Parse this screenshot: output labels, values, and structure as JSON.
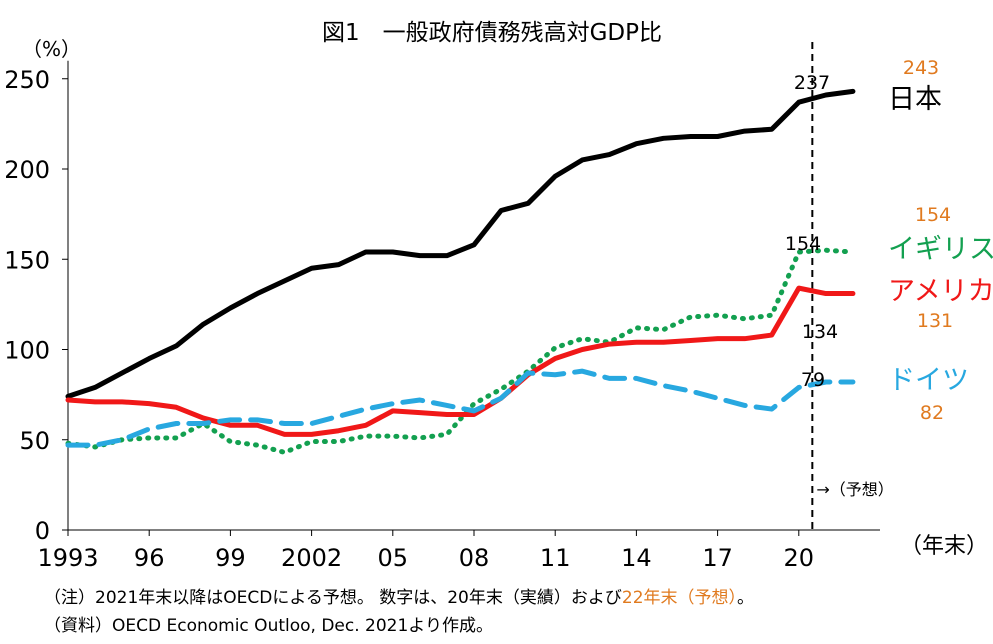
{
  "chart_data": {
    "type": "line",
    "title": "図1　一般政府債務残高対GDP比",
    "ylabel": "（%）",
    "xlabel": "（年末）",
    "ylim": [
      0,
      260
    ],
    "xlim": [
      1993,
      2023
    ],
    "x_ticks": [
      {
        "value": 1993,
        "label": "1993"
      },
      {
        "value": 1996,
        "label": "96"
      },
      {
        "value": 1999,
        "label": "99"
      },
      {
        "value": 2002,
        "label": "2002"
      },
      {
        "value": 2005,
        "label": "05"
      },
      {
        "value": 2008,
        "label": "08"
      },
      {
        "value": 2011,
        "label": "11"
      },
      {
        "value": 2014,
        "label": "14"
      },
      {
        "value": 2017,
        "label": "17"
      },
      {
        "value": 2020,
        "label": "20"
      }
    ],
    "y_ticks": [
      0,
      50,
      100,
      150,
      200,
      250
    ],
    "forecast_line": {
      "x": 2020.5,
      "label": "→（予想）"
    },
    "x": [
      1993,
      1994,
      1995,
      1996,
      1997,
      1998,
      1999,
      2000,
      2001,
      2002,
      2003,
      2004,
      2005,
      2006,
      2007,
      2008,
      2009,
      2010,
      2011,
      2012,
      2013,
      2014,
      2015,
      2016,
      2017,
      2018,
      2019,
      2020,
      2021,
      2022
    ],
    "series": [
      {
        "name": "日本",
        "color": "#000000",
        "style": "solid",
        "values": [
          74,
          79,
          87,
          95,
          102,
          114,
          123,
          131,
          138,
          145,
          147,
          154,
          154,
          152,
          152,
          158,
          177,
          181,
          196,
          205,
          208,
          214,
          217,
          218,
          218,
          221,
          222,
          237,
          241,
          243
        ],
        "label_20": "237",
        "label_22": "243"
      },
      {
        "name": "イギリス",
        "color": "#13a050",
        "style": "dotted",
        "values": [
          48,
          46,
          50,
          51,
          51,
          59,
          49,
          47,
          43,
          49,
          49,
          52,
          52,
          51,
          53,
          70,
          78,
          88,
          101,
          106,
          104,
          112,
          111,
          118,
          119,
          117,
          119,
          154,
          155,
          154
        ],
        "label_20": "154",
        "label_22": "154"
      },
      {
        "name": "アメリカ",
        "color": "#f01818",
        "style": "solid",
        "values": [
          72,
          71,
          71,
          70,
          68,
          62,
          58,
          58,
          53,
          53,
          55,
          58,
          66,
          65,
          64,
          64,
          73,
          86,
          95,
          100,
          103,
          104,
          104,
          105,
          106,
          106,
          108,
          134,
          131,
          131
        ],
        "label_20": "134",
        "label_22": "131"
      },
      {
        "name": "ドイツ",
        "color": "#28a8e0",
        "style": "dashed",
        "values": [
          47,
          47,
          50,
          56,
          59,
          59,
          61,
          61,
          59,
          59,
          63,
          67,
          70,
          72,
          69,
          66,
          73,
          87,
          86,
          88,
          84,
          84,
          80,
          77,
          73,
          69,
          67,
          79,
          82,
          82
        ],
        "label_20": "79",
        "label_22": "82"
      }
    ]
  },
  "notes": {
    "line1_main": "（注）2021年末以降はOECDによる予想。 数字は、20年末（実績）および",
    "line1_highlight": "22年末（予想）",
    "line1_end": "。",
    "line2": "（資料）OECD Economic Outloo, Dec. 2021より作成。"
  },
  "colors": {
    "forecast_highlight": "#e07a1f"
  }
}
